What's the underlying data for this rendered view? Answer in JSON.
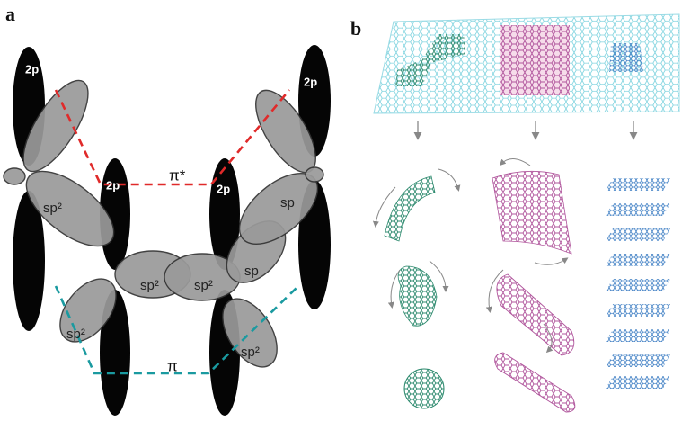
{
  "panel_a": {
    "label": "a",
    "p_orbital_labels": [
      "2p",
      "2p",
      "2p",
      "2p"
    ],
    "sp2_labels": [
      "sp²",
      "sp",
      "sp²",
      "sp²",
      "sp",
      "sp²",
      "sp²"
    ],
    "pi_star": "π*",
    "pi": "π"
  },
  "panel_b": {
    "label": "b"
  }
}
